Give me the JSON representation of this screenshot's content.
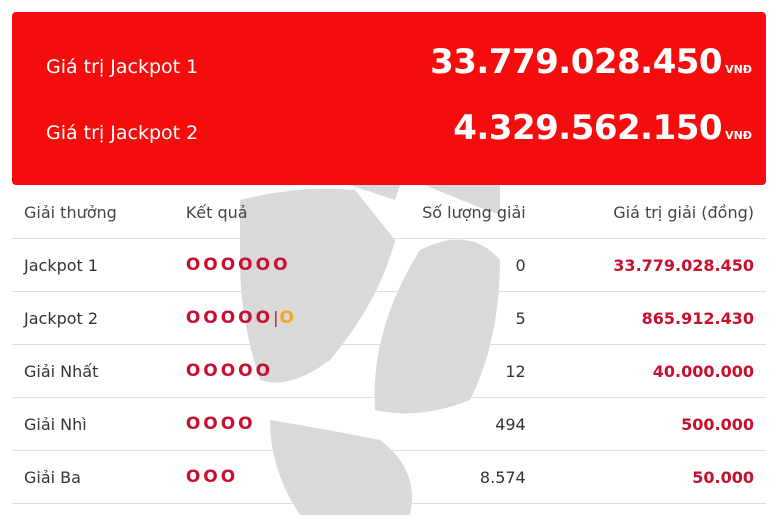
{
  "jackpots": [
    {
      "label": "Giá trị Jackpot 1",
      "value": "33.779.028.450",
      "unit": "VNĐ"
    },
    {
      "label": "Giá trị Jackpot 2",
      "value": "4.329.562.150",
      "unit": "VNĐ"
    }
  ],
  "table": {
    "headers": [
      "Giải thưởng",
      "Kết quả",
      "Số lượng giải",
      "Giá trị giải (đồng)"
    ],
    "rows": [
      {
        "prize": "Jackpot 1",
        "result": "OOOOOO",
        "count": "0",
        "value": "33.779.028.450"
      },
      {
        "prize": "Jackpot 2",
        "result": "OOOOO",
        "separator": "|",
        "bonus": "O",
        "count": "5",
        "value": "865.912.430"
      },
      {
        "prize": "Giải Nhất",
        "result": "OOOOO",
        "count": "12",
        "value": "40.000.000"
      },
      {
        "prize": "Giải Nhì",
        "result": "OOOO",
        "count": "494",
        "value": "500.000"
      },
      {
        "prize": "Giải Ba",
        "result": "OOO",
        "count": "8.574",
        "value": "50.000"
      }
    ]
  }
}
